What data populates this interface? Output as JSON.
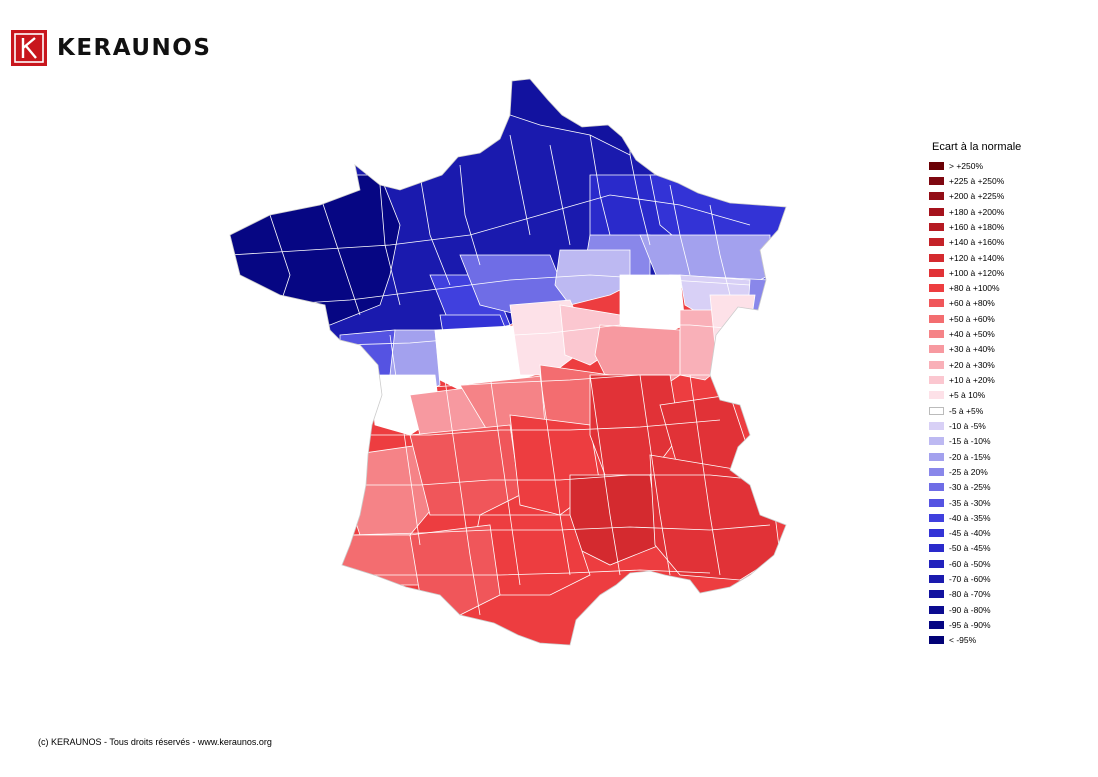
{
  "brand": {
    "name": "KERAUNOS"
  },
  "legend": {
    "title": "Ecart à la normale",
    "items": [
      {
        "label": "> +250%",
        "color": "#6a0005"
      },
      {
        "label": "+225 à +250%",
        "color": "#7e0710"
      },
      {
        "label": "+200 à +225%",
        "color": "#920d16"
      },
      {
        "label": "+180 à +200%",
        "color": "#a5121c"
      },
      {
        "label": "+160 à +180%",
        "color": "#b51a22"
      },
      {
        "label": "+140 à +160%",
        "color": "#c42228"
      },
      {
        "label": "+120 à +140%",
        "color": "#d42a2f"
      },
      {
        "label": "+100 à +120%",
        "color": "#e13237"
      },
      {
        "label": "+80 à +100%",
        "color": "#ed3d40"
      },
      {
        "label": "+60 à +80%",
        "color": "#f0565a"
      },
      {
        "label": "+50 à +60%",
        "color": "#f36d70"
      },
      {
        "label": "+40 à +50%",
        "color": "#f58387"
      },
      {
        "label": "+30 à +40%",
        "color": "#f799a0"
      },
      {
        "label": "+20 à +30%",
        "color": "#f9b0b8"
      },
      {
        "label": "+10 à +20%",
        "color": "#fbc7d0"
      },
      {
        "label": "+5 à 10%",
        "color": "#fde1e8"
      },
      {
        "label": "-5 à +5%",
        "color": "#ffffff"
      },
      {
        "label": "-10 à -5%",
        "color": "#d8d0f6"
      },
      {
        "label": "-15 à -10%",
        "color": "#bdb9f2"
      },
      {
        "label": "-20 à -15%",
        "color": "#a3a1ee"
      },
      {
        "label": "-25 à 20%",
        "color": "#8987ea"
      },
      {
        "label": "-30 à -25%",
        "color": "#6f6de6"
      },
      {
        "label": "-35 à -30%",
        "color": "#5553e2"
      },
      {
        "label": "-40 à -35%",
        "color": "#4040de"
      },
      {
        "label": "-45 à -40%",
        "color": "#3333d6"
      },
      {
        "label": "-50 à -45%",
        "color": "#2a2acb"
      },
      {
        "label": "-60 à -50%",
        "color": "#2222bd"
      },
      {
        "label": "-70 à -60%",
        "color": "#1a1aae"
      },
      {
        "label": "-80 à -70%",
        "color": "#12129f"
      },
      {
        "label": "-90 à -80%",
        "color": "#0b0b90"
      },
      {
        "label": "-95 à -90%",
        "color": "#060683"
      },
      {
        "label": "< -95%",
        "color": "#020276"
      }
    ]
  },
  "footer": {
    "copyright": "(c) KERAUNOS - Tous droits réservés - www.keraunos.org"
  }
}
